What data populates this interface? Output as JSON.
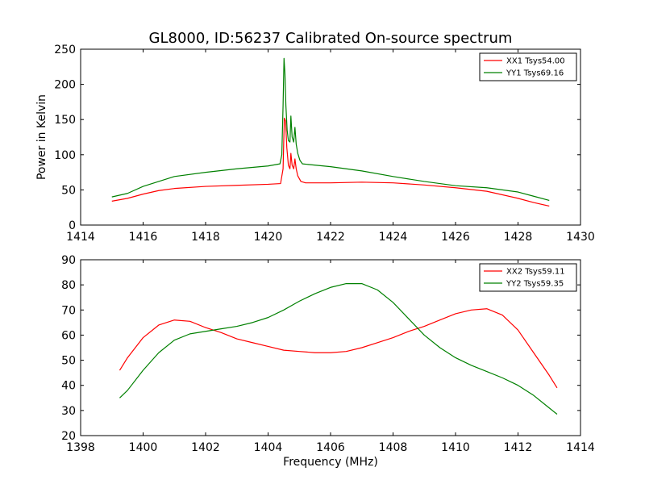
{
  "figure": {
    "title": "GL8000, ID:56237 Calibrated On-source spectrum"
  },
  "chart_data": [
    {
      "type": "line",
      "title": "GL8000, ID:56237 Calibrated On-source spectrum",
      "xlabel": "",
      "ylabel": "Power in Kelvin",
      "xlim": [
        1414,
        1430
      ],
      "ylim": [
        0,
        250
      ],
      "xticks": [
        "1414",
        "1416",
        "1418",
        "1420",
        "1422",
        "1424",
        "1426",
        "1428",
        "1430"
      ],
      "yticks": [
        "0",
        "50",
        "100",
        "150",
        "200",
        "250"
      ],
      "grid": false,
      "legend": "top-right",
      "series": [
        {
          "name": "XX1 Tsys54.00",
          "color": "#ff0000",
          "points": [
            [
              1415,
              34
            ],
            [
              1415.5,
              38
            ],
            [
              1416,
              44
            ],
            [
              1416.5,
              49
            ],
            [
              1417,
              52
            ],
            [
              1418,
              55
            ],
            [
              1419,
              56.5
            ],
            [
              1420,
              58
            ],
            [
              1420.4,
              59
            ],
            [
              1420.48,
              80
            ],
            [
              1420.52,
              152
            ],
            [
              1420.56,
              148
            ],
            [
              1420.6,
              110
            ],
            [
              1420.65,
              85
            ],
            [
              1420.7,
              80
            ],
            [
              1420.73,
              102
            ],
            [
              1420.77,
              85
            ],
            [
              1420.82,
              80
            ],
            [
              1420.86,
              94
            ],
            [
              1420.9,
              80
            ],
            [
              1420.95,
              70
            ],
            [
              1421.05,
              62
            ],
            [
              1421.2,
              60
            ],
            [
              1422,
              60
            ],
            [
              1423,
              61
            ],
            [
              1424,
              60
            ],
            [
              1425,
              57
            ],
            [
              1426,
              53
            ],
            [
              1427,
              48
            ],
            [
              1428,
              38
            ],
            [
              1428.5,
              32
            ],
            [
              1429,
              27
            ]
          ]
        },
        {
          "name": "YY1 Tsys69.16",
          "color": "#008000",
          "points": [
            [
              1415,
              40
            ],
            [
              1415.5,
              45
            ],
            [
              1416,
              55
            ],
            [
              1416.5,
              62
            ],
            [
              1417,
              69
            ],
            [
              1418,
              75
            ],
            [
              1419,
              80
            ],
            [
              1420,
              84
            ],
            [
              1420.38,
              87
            ],
            [
              1420.44,
              100
            ],
            [
              1420.48,
              170
            ],
            [
              1420.51,
              237
            ],
            [
              1420.54,
              215
            ],
            [
              1420.57,
              170
            ],
            [
              1420.61,
              135
            ],
            [
              1420.65,
              120
            ],
            [
              1420.7,
              118
            ],
            [
              1420.73,
              155
            ],
            [
              1420.77,
              125
            ],
            [
              1420.82,
              118
            ],
            [
              1420.86,
              139
            ],
            [
              1420.9,
              115
            ],
            [
              1420.95,
              102
            ],
            [
              1421.02,
              92
            ],
            [
              1421.1,
              87
            ],
            [
              1422,
              83
            ],
            [
              1423,
              77
            ],
            [
              1424,
              69
            ],
            [
              1425,
              62
            ],
            [
              1426,
              56
            ],
            [
              1427,
              53
            ],
            [
              1428,
              47
            ],
            [
              1428.5,
              41
            ],
            [
              1429,
              35
            ]
          ]
        }
      ]
    },
    {
      "type": "line",
      "title": "",
      "xlabel": "Frequency (MHz)",
      "ylabel": "",
      "xlim": [
        1398,
        1414
      ],
      "ylim": [
        20,
        90
      ],
      "xticks": [
        "1398",
        "1400",
        "1402",
        "1404",
        "1406",
        "1408",
        "1410",
        "1412",
        "1414"
      ],
      "yticks": [
        "20",
        "30",
        "40",
        "50",
        "60",
        "70",
        "80",
        "90"
      ],
      "grid": false,
      "legend": "top-right",
      "series": [
        {
          "name": "XX2 Tsys59.11",
          "color": "#ff0000",
          "points": [
            [
              1399.25,
              46
            ],
            [
              1399.5,
              51
            ],
            [
              1400,
              59
            ],
            [
              1400.5,
              64
            ],
            [
              1401,
              66
            ],
            [
              1401.5,
              65.5
            ],
            [
              1402,
              63
            ],
            [
              1402.5,
              61
            ],
            [
              1403,
              58.5
            ],
            [
              1403.5,
              57
            ],
            [
              1404,
              55.5
            ],
            [
              1404.5,
              54
            ],
            [
              1405,
              53.5
            ],
            [
              1405.5,
              53
            ],
            [
              1406,
              53
            ],
            [
              1406.5,
              53.5
            ],
            [
              1407,
              55
            ],
            [
              1407.5,
              57
            ],
            [
              1408,
              59
            ],
            [
              1408.5,
              61.5
            ],
            [
              1409,
              63.5
            ],
            [
              1409.5,
              66
            ],
            [
              1410,
              68.5
            ],
            [
              1410.5,
              70
            ],
            [
              1411,
              70.5
            ],
            [
              1411.5,
              68
            ],
            [
              1412,
              62
            ],
            [
              1412.5,
              53
            ],
            [
              1413,
              44
            ],
            [
              1413.25,
              39
            ]
          ]
        },
        {
          "name": "YY2 Tsys59.35",
          "color": "#008000",
          "points": [
            [
              1399.25,
              35
            ],
            [
              1399.5,
              38
            ],
            [
              1400,
              46
            ],
            [
              1400.5,
              53
            ],
            [
              1401,
              58
            ],
            [
              1401.5,
              60.5
            ],
            [
              1402,
              61.5
            ],
            [
              1402.5,
              62.5
            ],
            [
              1403,
              63.5
            ],
            [
              1403.5,
              65
            ],
            [
              1404,
              67
            ],
            [
              1404.5,
              70
            ],
            [
              1405,
              73.5
            ],
            [
              1405.5,
              76.5
            ],
            [
              1406,
              79
            ],
            [
              1406.5,
              80.5
            ],
            [
              1407,
              80.5
            ],
            [
              1407.5,
              78
            ],
            [
              1408,
              73
            ],
            [
              1408.5,
              66.5
            ],
            [
              1409,
              60
            ],
            [
              1409.5,
              55
            ],
            [
              1410,
              51
            ],
            [
              1410.5,
              48
            ],
            [
              1411,
              45.5
            ],
            [
              1411.5,
              43
            ],
            [
              1412,
              40
            ],
            [
              1412.5,
              36
            ],
            [
              1413,
              31
            ],
            [
              1413.25,
              28.5
            ]
          ]
        }
      ]
    }
  ]
}
